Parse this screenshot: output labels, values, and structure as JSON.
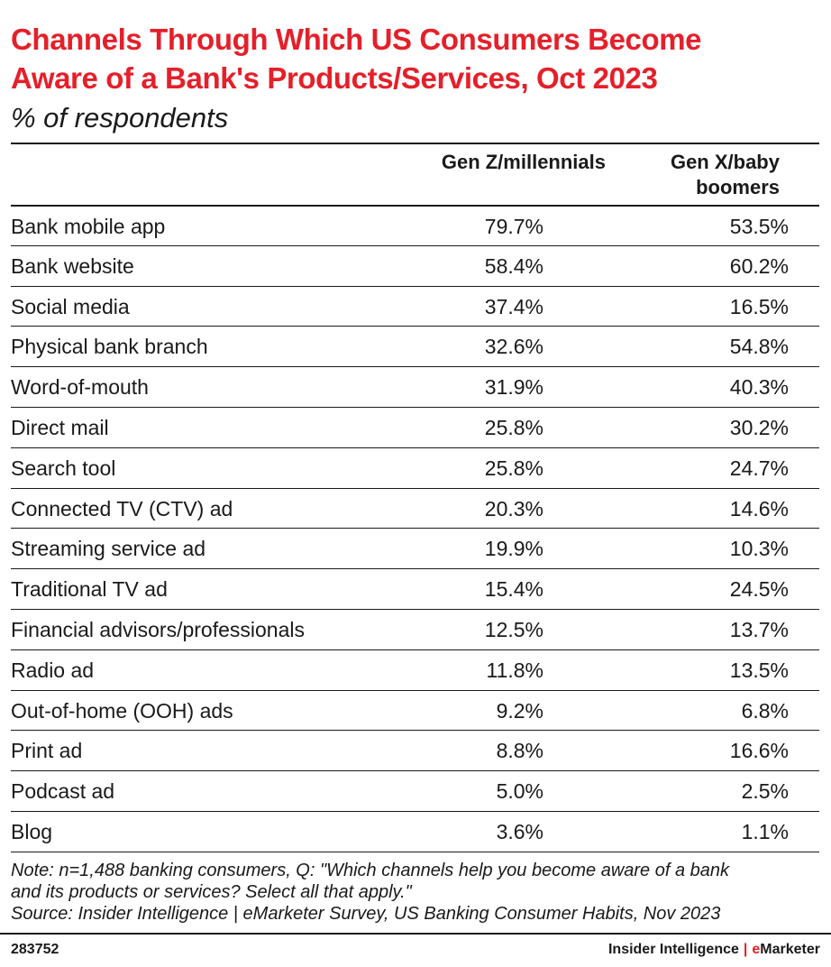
{
  "chart_data": {
    "type": "table",
    "title": "Channels Through Which US Consumers Become Aware of a Bank's Products/Services, Oct 2023",
    "subtitle": "% of respondents",
    "columns": [
      "Gen Z/millennials",
      "Gen X/baby boomers"
    ],
    "column_header_lines": [
      [
        "Gen Z/millennials"
      ],
      [
        "Gen X/baby",
        "boomers"
      ]
    ],
    "rows": [
      {
        "label": "Bank mobile app",
        "values": [
          "79.7%",
          "53.5%"
        ]
      },
      {
        "label": "Bank website",
        "values": [
          "58.4%",
          "60.2%"
        ]
      },
      {
        "label": "Social media",
        "values": [
          "37.4%",
          "16.5%"
        ]
      },
      {
        "label": "Physical bank branch",
        "values": [
          "32.6%",
          "54.8%"
        ]
      },
      {
        "label": "Word-of-mouth",
        "values": [
          "31.9%",
          "40.3%"
        ]
      },
      {
        "label": "Direct mail",
        "values": [
          "25.8%",
          "30.2%"
        ]
      },
      {
        "label": "Search tool",
        "values": [
          "25.8%",
          "24.7%"
        ]
      },
      {
        "label": "Connected TV (CTV) ad",
        "values": [
          "20.3%",
          "14.6%"
        ]
      },
      {
        "label": "Streaming service ad",
        "values": [
          "19.9%",
          "10.3%"
        ]
      },
      {
        "label": "Traditional TV ad",
        "values": [
          "15.4%",
          "24.5%"
        ]
      },
      {
        "label": "Financial advisors/professionals",
        "values": [
          "12.5%",
          "13.7%"
        ]
      },
      {
        "label": "Radio ad",
        "values": [
          "11.8%",
          "13.5%"
        ]
      },
      {
        "label": "Out-of-home (OOH) ads",
        "values": [
          "9.2%",
          "6.8%"
        ]
      },
      {
        "label": "Print ad",
        "values": [
          "8.8%",
          "16.6%"
        ]
      },
      {
        "label": "Podcast ad",
        "values": [
          "5.0%",
          "2.5%"
        ]
      },
      {
        "label": "Blog",
        "values": [
          "3.6%",
          "1.1%"
        ]
      }
    ]
  },
  "header": {
    "title_line1": "Channels Through Which US Consumers Become",
    "title_line2": "Aware of a Bank's Products/Services, Oct 2023",
    "subtitle": "% of respondents"
  },
  "note": {
    "line1": "Note: n=1,488 banking consumers, Q: \"Which channels help you become aware of a bank",
    "line2": "and its products or services? Select all that apply.\"",
    "source": "Source: Insider Intelligence | eMarketer Survey, US Banking Consumer Habits, Nov 2023"
  },
  "footer": {
    "chart_id": "283752",
    "brand_left": "Insider Intelligence",
    "brand_sep": "|",
    "brand_right_e": "e",
    "brand_right_rest": "Marketer"
  },
  "colors": {
    "title": "#e4202a",
    "text": "#1a1a1a",
    "rule": "#1a1a1a",
    "background": "#ffffff"
  }
}
